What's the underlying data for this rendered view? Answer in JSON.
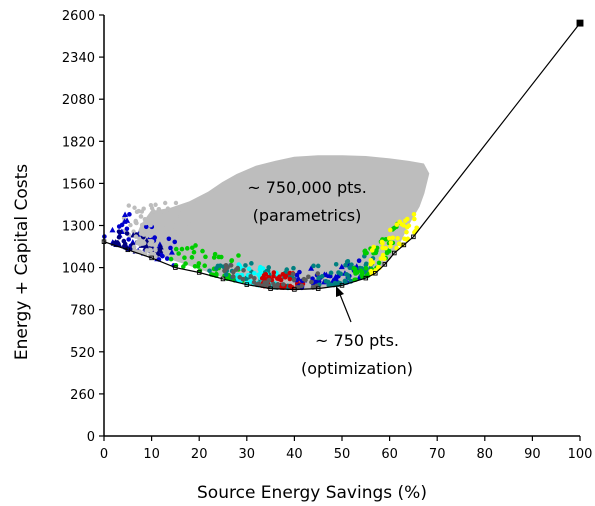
{
  "chart_data": {
    "type": "scatter",
    "title": "",
    "xlabel": "Source Energy Savings (%)",
    "ylabel": "Energy + Capital Costs",
    "xlim": [
      0,
      100
    ],
    "ylim": [
      0,
      2600
    ],
    "xticks": [
      0,
      10,
      20,
      30,
      40,
      50,
      60,
      70,
      80,
      90,
      100
    ],
    "yticks": [
      0,
      260,
      520,
      780,
      1040,
      1300,
      1560,
      1820,
      2080,
      2340,
      2600
    ],
    "grid": false,
    "legend": "none",
    "parametric_cloud": {
      "color": "#bdbdbd",
      "outline": [
        [
          10,
          1380
        ],
        [
          14,
          1400
        ],
        [
          18,
          1440
        ],
        [
          22,
          1500
        ],
        [
          25,
          1560
        ],
        [
          28,
          1610
        ],
        [
          32,
          1660
        ],
        [
          36,
          1690
        ],
        [
          40,
          1715
        ],
        [
          45,
          1725
        ],
        [
          50,
          1725
        ],
        [
          55,
          1720
        ],
        [
          60,
          1705
        ],
        [
          64,
          1690
        ],
        [
          67,
          1675
        ],
        [
          68,
          1620
        ],
        [
          67,
          1500
        ],
        [
          66,
          1420
        ],
        [
          64,
          1320
        ],
        [
          62,
          1200
        ],
        [
          60,
          1100
        ],
        [
          58,
          1040
        ],
        [
          55,
          990
        ],
        [
          52,
          960
        ],
        [
          48,
          930
        ],
        [
          44,
          915
        ],
        [
          40,
          910
        ],
        [
          36,
          915
        ],
        [
          32,
          935
        ],
        [
          28,
          965
        ],
        [
          24,
          1000
        ],
        [
          20,
          1040
        ],
        [
          16,
          1080
        ],
        [
          12,
          1120
        ],
        [
          9,
          1170
        ],
        [
          7,
          1230
        ],
        [
          8,
          1300
        ]
      ]
    },
    "optimization_curve": {
      "color": "#000000",
      "points": [
        [
          0,
          1200
        ],
        [
          5,
          1150
        ],
        [
          10,
          1100
        ],
        [
          15,
          1040
        ],
        [
          20,
          1010
        ],
        [
          25,
          970
        ],
        [
          30,
          935
        ],
        [
          35,
          910
        ],
        [
          40,
          905
        ],
        [
          45,
          910
        ],
        [
          50,
          930
        ],
        [
          55,
          975
        ],
        [
          57,
          1005
        ],
        [
          59,
          1060
        ],
        [
          61,
          1130
        ],
        [
          63,
          1180
        ],
        [
          65,
          1230
        ],
        [
          100,
          2550
        ]
      ]
    },
    "optimization_point_colors": [
      "#5a5a5a",
      "#bdbdbd",
      "#0000cc",
      "#00cc00",
      "#008080",
      "#00ffff",
      "#cc0000",
      "#ffff00",
      "#000080"
    ],
    "annotations": [
      {
        "text": "~ 750,000 pts.",
        "x": 46,
        "y": 1500
      },
      {
        "text": "(parametrics)",
        "x": 46,
        "y": 1325
      },
      {
        "text": "~ 750 pts.",
        "x": 54,
        "y": 520
      },
      {
        "text": "(optimization)",
        "x": 54,
        "y": 345
      }
    ]
  }
}
